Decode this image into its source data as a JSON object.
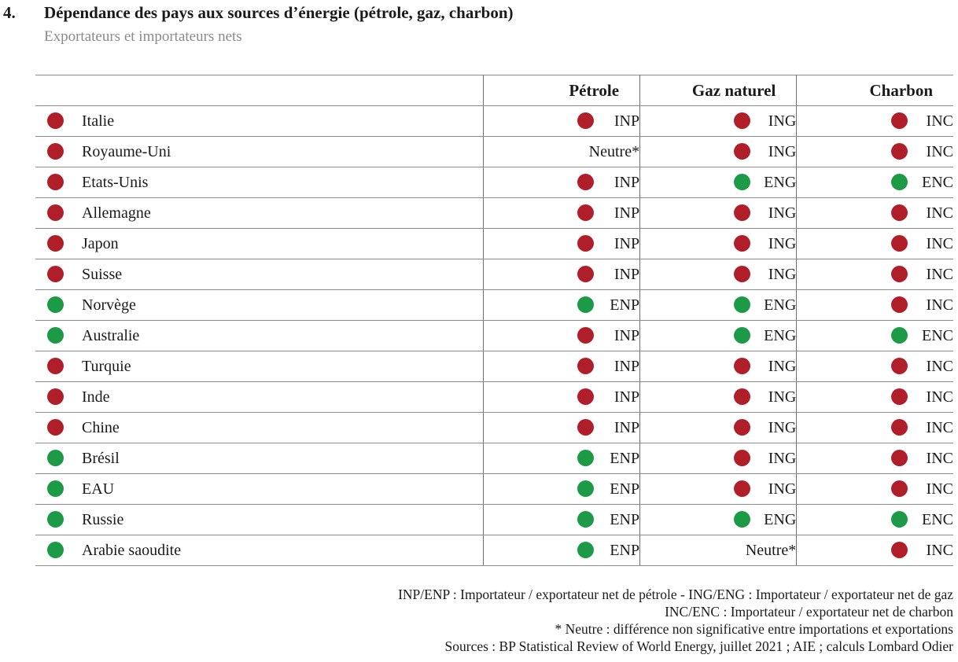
{
  "header": {
    "number": "4.",
    "title": "Dépendance des pays aux sources d’énergie (pétrole, gaz, charbon)",
    "subtitle": "Exportateurs et importateurs nets"
  },
  "columns": [
    "Pétrole",
    "Gaz naturel",
    "Charbon"
  ],
  "colors": {
    "red": "#b01e2a",
    "green": "#1c9a45"
  },
  "rows": [
    {
      "country": "Italie",
      "status": "red",
      "oil": {
        "code": "INP",
        "color": "red"
      },
      "gas": {
        "code": "ING",
        "color": "red"
      },
      "coal": {
        "code": "INC",
        "color": "red"
      }
    },
    {
      "country": "Royaume-Uni",
      "status": "red",
      "oil": {
        "code": "Neutre*",
        "color": "none"
      },
      "gas": {
        "code": "ING",
        "color": "red"
      },
      "coal": {
        "code": "INC",
        "color": "red"
      }
    },
    {
      "country": "Etats-Unis",
      "status": "red",
      "oil": {
        "code": "INP",
        "color": "red"
      },
      "gas": {
        "code": "ENG",
        "color": "green"
      },
      "coal": {
        "code": "ENC",
        "color": "green"
      }
    },
    {
      "country": "Allemagne",
      "status": "red",
      "oil": {
        "code": "INP",
        "color": "red"
      },
      "gas": {
        "code": "ING",
        "color": "red"
      },
      "coal": {
        "code": "INC",
        "color": "red"
      }
    },
    {
      "country": "Japon",
      "status": "red",
      "oil": {
        "code": "INP",
        "color": "red"
      },
      "gas": {
        "code": "ING",
        "color": "red"
      },
      "coal": {
        "code": "INC",
        "color": "red"
      }
    },
    {
      "country": "Suisse",
      "status": "red",
      "oil": {
        "code": "INP",
        "color": "red"
      },
      "gas": {
        "code": "ING",
        "color": "red"
      },
      "coal": {
        "code": "INC",
        "color": "red"
      }
    },
    {
      "country": "Norvège",
      "status": "green",
      "oil": {
        "code": "ENP",
        "color": "green"
      },
      "gas": {
        "code": "ENG",
        "color": "green"
      },
      "coal": {
        "code": "INC",
        "color": "red"
      }
    },
    {
      "country": "Australie",
      "status": "green",
      "oil": {
        "code": "INP",
        "color": "red"
      },
      "gas": {
        "code": "ENG",
        "color": "green"
      },
      "coal": {
        "code": "ENC",
        "color": "green"
      }
    },
    {
      "country": "Turquie",
      "status": "red",
      "oil": {
        "code": "INP",
        "color": "red"
      },
      "gas": {
        "code": "ING",
        "color": "red"
      },
      "coal": {
        "code": "INC",
        "color": "red"
      }
    },
    {
      "country": "Inde",
      "status": "red",
      "oil": {
        "code": "INP",
        "color": "red"
      },
      "gas": {
        "code": "ING",
        "color": "red"
      },
      "coal": {
        "code": "INC",
        "color": "red"
      }
    },
    {
      "country": "Chine",
      "status": "red",
      "oil": {
        "code": "INP",
        "color": "red"
      },
      "gas": {
        "code": "ING",
        "color": "red"
      },
      "coal": {
        "code": "INC",
        "color": "red"
      }
    },
    {
      "country": "Brésil",
      "status": "green",
      "oil": {
        "code": "ENP",
        "color": "green"
      },
      "gas": {
        "code": "ING",
        "color": "red"
      },
      "coal": {
        "code": "INC",
        "color": "red"
      }
    },
    {
      "country": "EAU",
      "status": "green",
      "oil": {
        "code": "ENP",
        "color": "green"
      },
      "gas": {
        "code": "ING",
        "color": "red"
      },
      "coal": {
        "code": "INC",
        "color": "red"
      }
    },
    {
      "country": "Russie",
      "status": "green",
      "oil": {
        "code": "ENP",
        "color": "green"
      },
      "gas": {
        "code": "ENG",
        "color": "green"
      },
      "coal": {
        "code": "ENC",
        "color": "green"
      }
    },
    {
      "country": "Arabie saoudite",
      "status": "green",
      "oil": {
        "code": "ENP",
        "color": "green"
      },
      "gas": {
        "code": "Neutre*",
        "color": "none"
      },
      "coal": {
        "code": "INC",
        "color": "red"
      }
    }
  ],
  "notes": [
    "INP/ENP : Importateur / exportateur net de pétrole - ING/ENG : Importateur / exportateur net de gaz",
    "INC/ENC : Importateur / exportateur net de charbon",
    "* Neutre : différence non significative entre importations et exportations",
    "Sources : BP Statistical Review of World Energy, juillet 2021 ; AIE ; calculs Lombard Odier"
  ]
}
